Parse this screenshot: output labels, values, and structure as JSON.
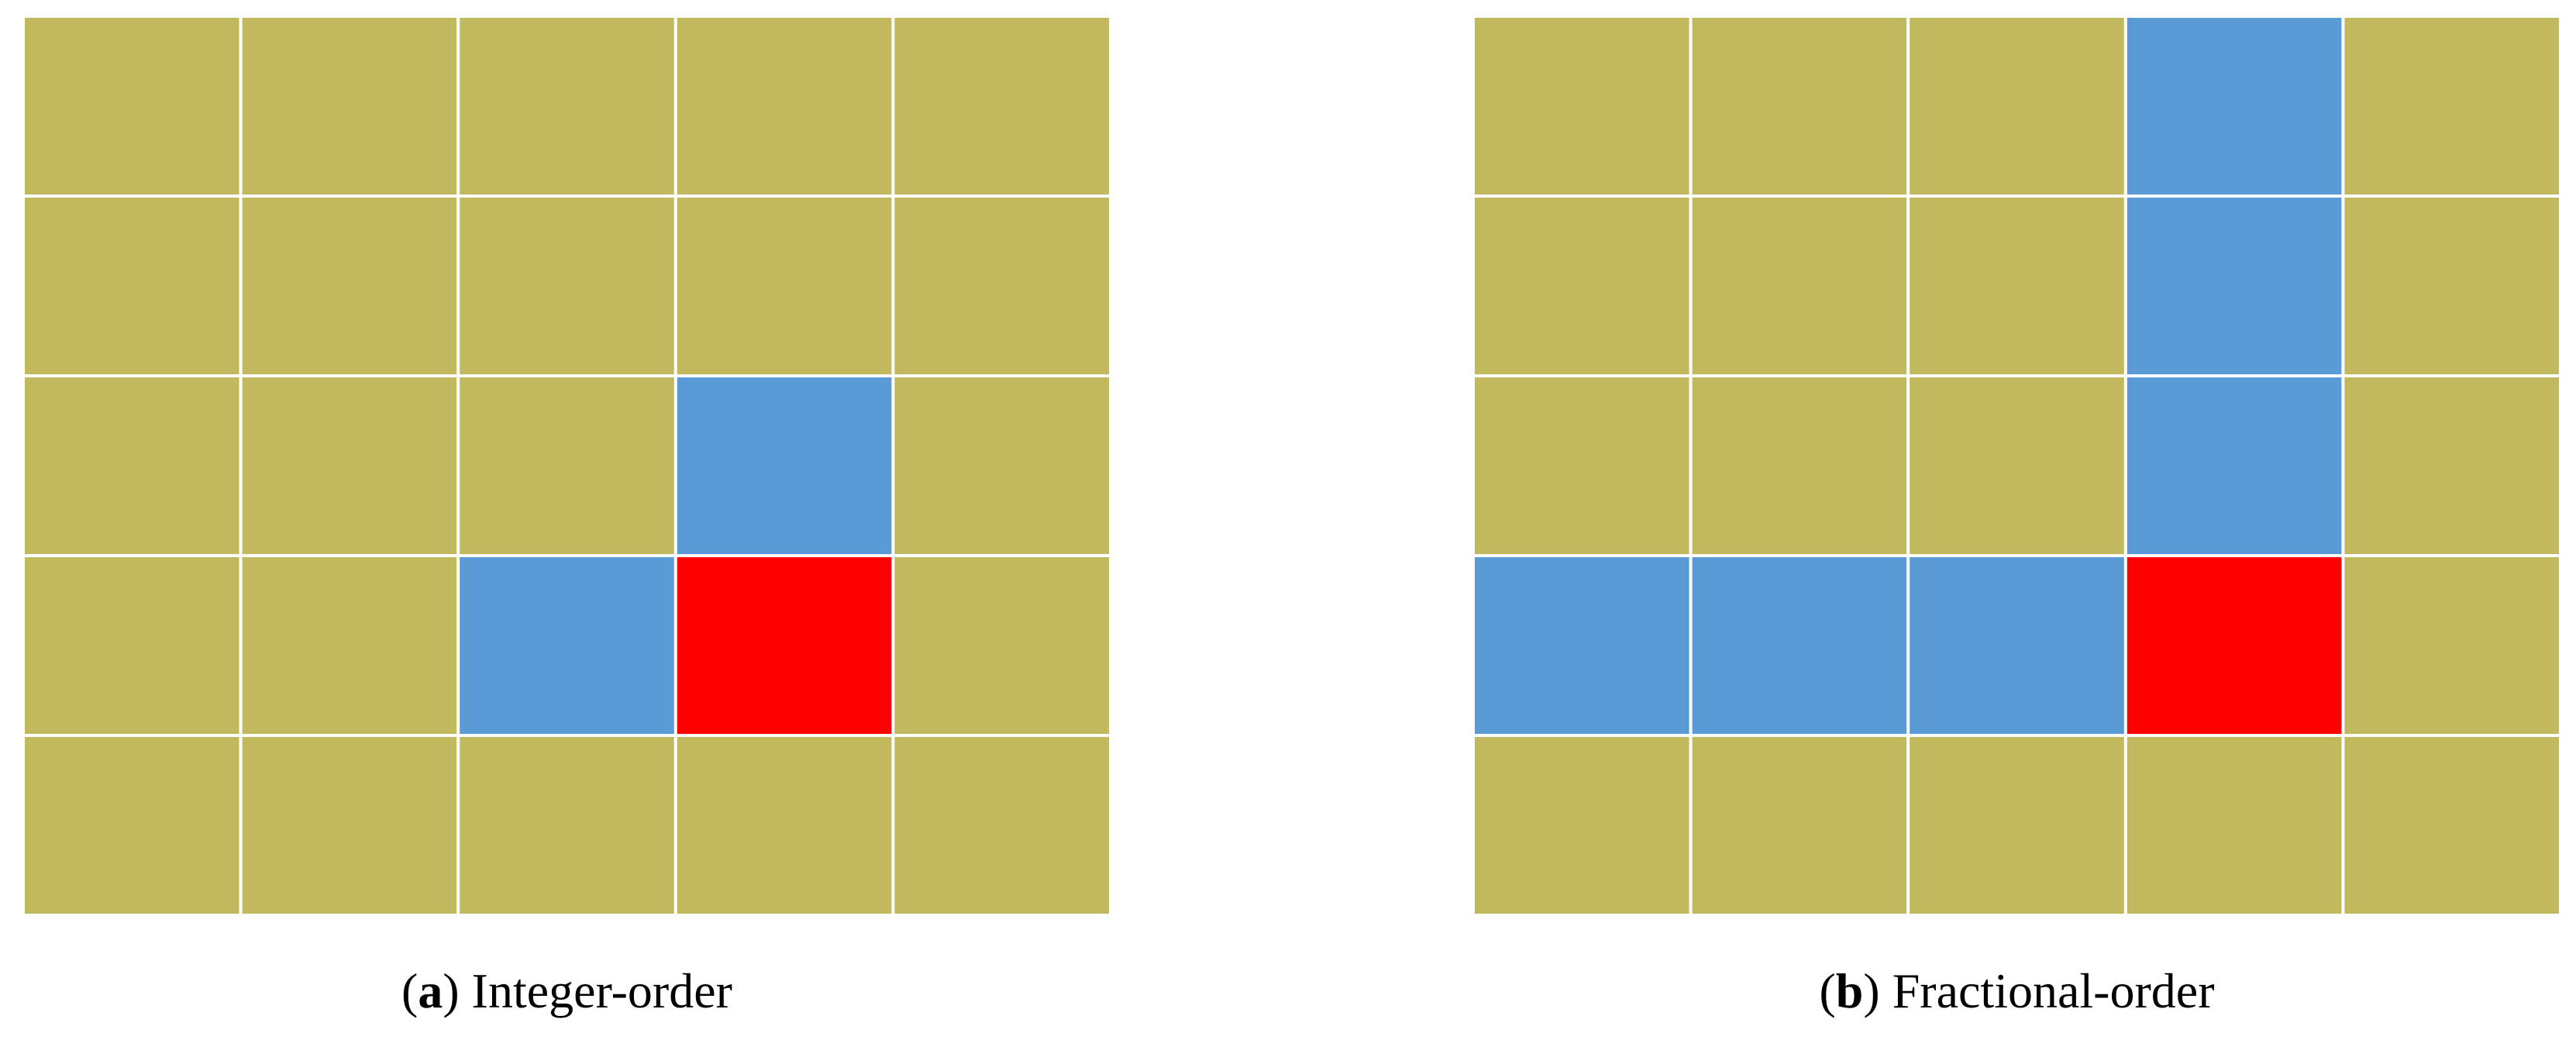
{
  "colors": {
    "o": "#c2b95e",
    "b": "#5b9bd5",
    "r": "#ff0000"
  },
  "panels": [
    {
      "caption": {
        "open": "(",
        "letter": "a",
        "close": ")",
        "text": "Integer-order"
      },
      "cells": [
        [
          "o",
          "o",
          "o",
          "o",
          "o"
        ],
        [
          "o",
          "o",
          "o",
          "o",
          "o"
        ],
        [
          "o",
          "o",
          "o",
          "b",
          "o"
        ],
        [
          "o",
          "o",
          "b",
          "r",
          "o"
        ],
        [
          "o",
          "o",
          "o",
          "o",
          "o"
        ]
      ]
    },
    {
      "caption": {
        "open": "(",
        "letter": "b",
        "close": ")",
        "text": "Fractional-order"
      },
      "cells": [
        [
          "o",
          "o",
          "o",
          "b",
          "o"
        ],
        [
          "o",
          "o",
          "o",
          "b",
          "o"
        ],
        [
          "o",
          "o",
          "o",
          "b",
          "o"
        ],
        [
          "b",
          "b",
          "b",
          "r",
          "o"
        ],
        [
          "o",
          "o",
          "o",
          "o",
          "o"
        ]
      ]
    }
  ]
}
